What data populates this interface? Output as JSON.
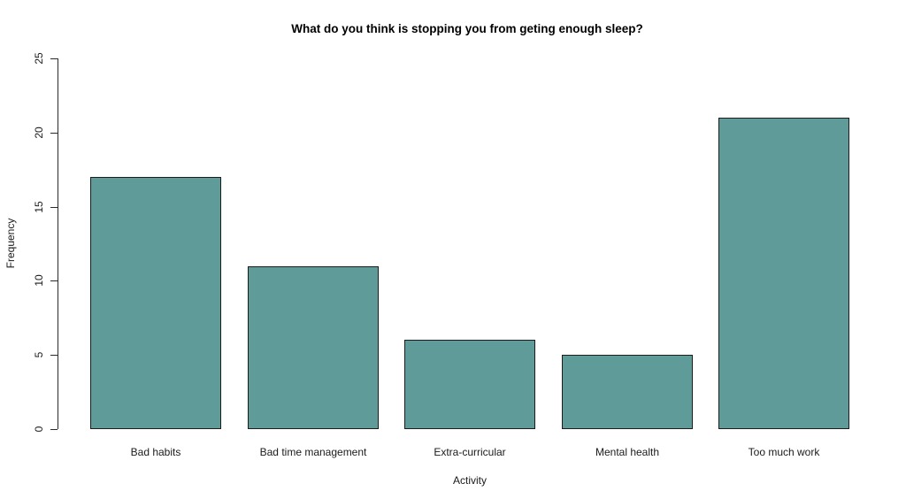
{
  "chart_data": {
    "type": "bar",
    "title": "What do you think is stopping you from geting enough sleep?",
    "xlabel": "Activity",
    "ylabel": "Frequency",
    "categories": [
      "Bad habits",
      "Bad time management",
      "Extra-curricular",
      "Mental health",
      "Too much work"
    ],
    "values": [
      17,
      11,
      6,
      5,
      21
    ],
    "ylim": [
      0,
      25
    ],
    "yticks": [
      0,
      5,
      10,
      15,
      20,
      25
    ],
    "grid": false,
    "legend": false,
    "bar_color": "#5F9C99",
    "bar_border_color": "#1c1c1c",
    "axis_color": "#2a2a2a",
    "text_color": "#1a1a1a",
    "title_color": "#000000",
    "background_color": "#ffffff"
  }
}
